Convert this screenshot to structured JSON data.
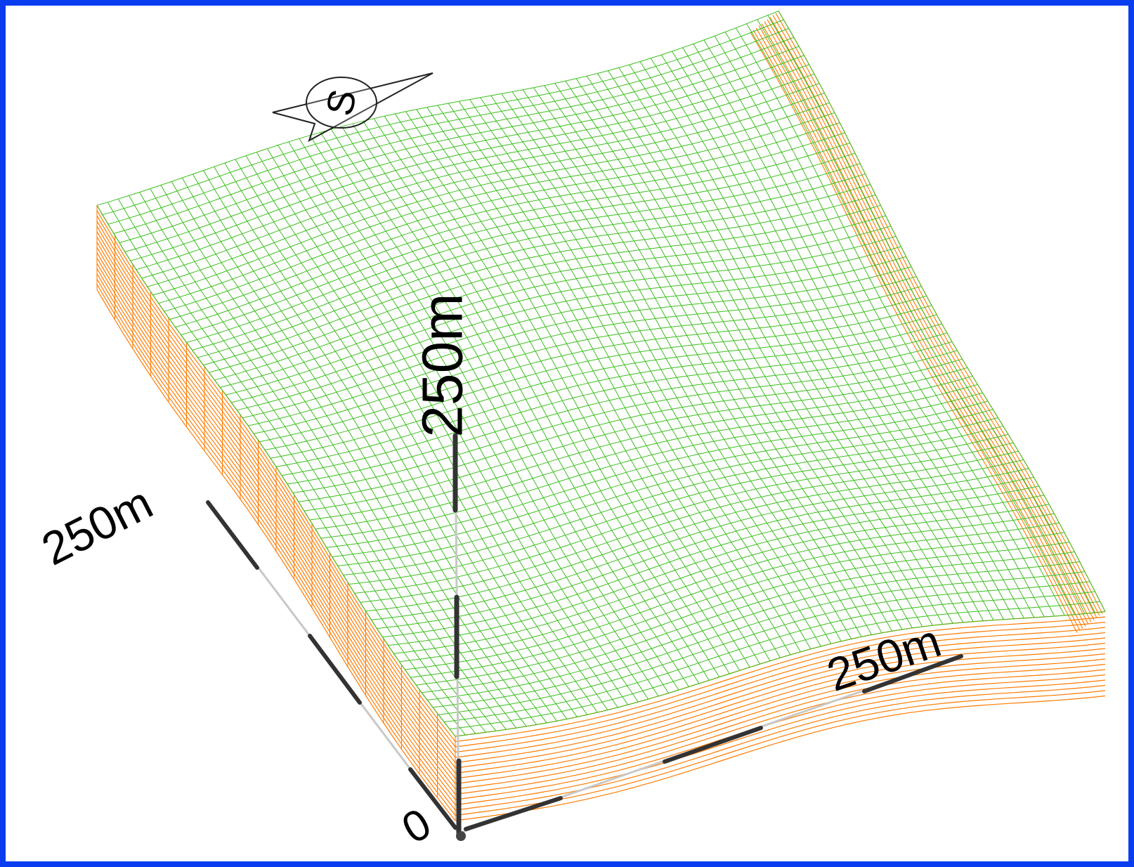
{
  "view": {
    "axes": {
      "origin_label": "0",
      "x_axis_label": "250m",
      "y_axis_label": "250m",
      "z_axis_label": "250m"
    },
    "compass": {
      "direction_label": "S",
      "icon": "compass-icon"
    },
    "colors": {
      "frame_border": "#0a3cf0",
      "surface_top": "#3bbf1c",
      "surface_side": "#ff7a00",
      "axis_bar": "#333333",
      "axis_line": "#bdbdbd"
    }
  }
}
